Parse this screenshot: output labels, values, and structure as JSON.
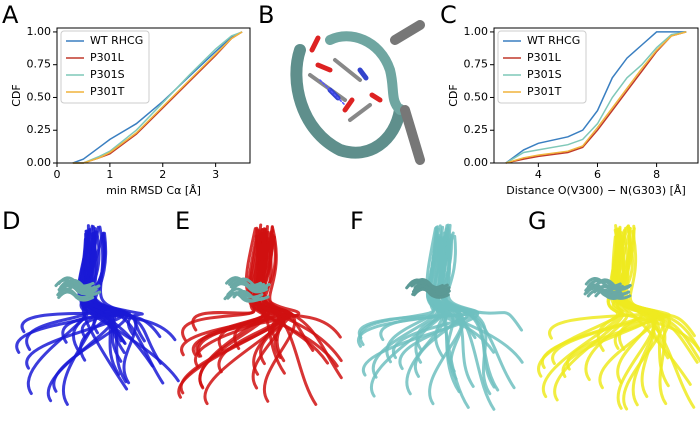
{
  "panels": {
    "a": "A",
    "b": "B",
    "c": "C",
    "d": "D",
    "e": "E",
    "f": "F",
    "g": "G"
  },
  "chart_data": [
    {
      "type": "line",
      "xlabel": "min RMSD Cα [Å]",
      "ylabel": "CDF",
      "x": [
        0.3,
        0.5,
        0.8,
        1.0,
        1.5,
        2.0,
        2.5,
        3.0,
        3.3,
        3.5
      ],
      "series": [
        {
          "name": "WT RHCG",
          "color": "#3a7fc1",
          "values": [
            0,
            0.03,
            0.12,
            0.18,
            0.3,
            0.47,
            0.66,
            0.85,
            0.96,
            1.0
          ]
        },
        {
          "name": "P301L",
          "color": "#c0392b",
          "values": [
            0,
            0,
            0.04,
            0.07,
            0.22,
            0.42,
            0.62,
            0.82,
            0.95,
            1.0
          ]
        },
        {
          "name": "P301S",
          "color": "#7fc8b8",
          "values": [
            0,
            0,
            0.05,
            0.09,
            0.25,
            0.46,
            0.67,
            0.87,
            0.97,
            1.0
          ]
        },
        {
          "name": "P301T",
          "color": "#f0b43c",
          "values": [
            0,
            0,
            0.04,
            0.08,
            0.23,
            0.43,
            0.63,
            0.83,
            0.95,
            1.0
          ]
        }
      ],
      "xlim": [
        0,
        3.65
      ],
      "xticks": [
        0,
        1,
        2,
        3
      ],
      "ylim": [
        0,
        1.03
      ],
      "yticks": [
        {
          "value": 0,
          "label": "0.00"
        },
        {
          "value": 0.25,
          "label": "0.25"
        },
        {
          "value": 0.5,
          "label": "0.50"
        },
        {
          "value": 0.75,
          "label": "0.75"
        },
        {
          "value": 1,
          "label": "1.00"
        }
      ],
      "legend": "upper left"
    },
    {
      "type": "line",
      "xlabel": "Distance O(V300) − N(G303) [Å]",
      "ylabel": "CDF",
      "x": [
        2.9,
        3.5,
        4,
        5,
        5.5,
        6,
        6.5,
        7,
        7.5,
        8,
        8.5,
        9
      ],
      "series": [
        {
          "name": "WT RHCG",
          "color": "#3a7fc1",
          "values": [
            0,
            0.1,
            0.15,
            0.2,
            0.25,
            0.4,
            0.65,
            0.8,
            0.9,
            1.0,
            1.0,
            1.0
          ]
        },
        {
          "name": "P301L",
          "color": "#c0392b",
          "values": [
            0,
            0.03,
            0.05,
            0.08,
            0.12,
            0.25,
            0.4,
            0.55,
            0.7,
            0.85,
            0.97,
            1.0
          ]
        },
        {
          "name": "P301S",
          "color": "#7fc8b8",
          "values": [
            0,
            0.08,
            0.1,
            0.14,
            0.18,
            0.3,
            0.5,
            0.65,
            0.75,
            0.88,
            0.98,
            1.0
          ]
        },
        {
          "name": "P301T",
          "color": "#f0b43c",
          "values": [
            0,
            0.04,
            0.06,
            0.09,
            0.13,
            0.27,
            0.42,
            0.57,
            0.72,
            0.86,
            0.97,
            1.0
          ]
        }
      ],
      "xlim": [
        2.5,
        9.4
      ],
      "xticks": [
        4,
        6,
        8
      ],
      "ylim": [
        0,
        1.03
      ],
      "yticks": [
        {
          "value": 0,
          "label": "0.00"
        },
        {
          "value": 0.25,
          "label": "0.25"
        },
        {
          "value": 0.5,
          "label": "0.50"
        },
        {
          "value": 0.75,
          "label": "0.75"
        },
        {
          "value": 1,
          "label": "1.00"
        }
      ],
      "legend": "upper left"
    }
  ]
}
